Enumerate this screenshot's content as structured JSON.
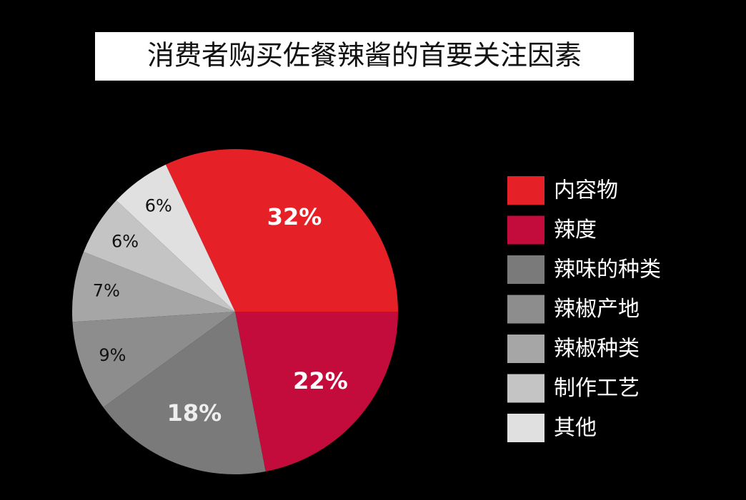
{
  "chart_data": {
    "type": "pie",
    "title": "消费者购买佐餐辣酱的首要关注因素",
    "categories": [
      "内容物",
      "辣度",
      "辣味的种类",
      "辣椒产地",
      "辣椒种类",
      "制作工艺",
      "其他"
    ],
    "values": [
      32,
      22,
      18,
      9,
      7,
      6,
      6
    ],
    "value_labels": [
      "32%",
      "22%",
      "18%",
      "9%",
      "7%",
      "6%",
      "6%"
    ],
    "colors": [
      "#e52027",
      "#c40c3c",
      "#7a7a7a",
      "#8d8d8d",
      "#a6a6a6",
      "#c4c4c4",
      "#e0e0e0"
    ],
    "legend": "right"
  }
}
